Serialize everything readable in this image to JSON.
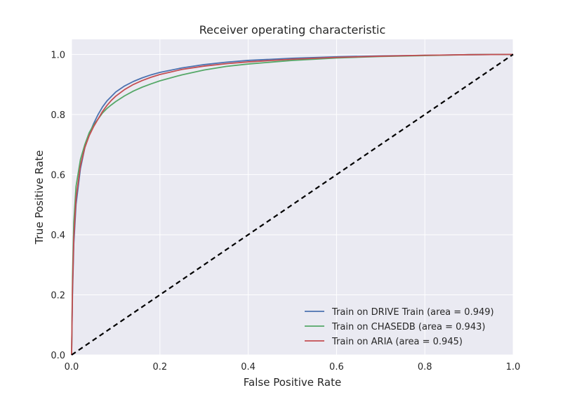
{
  "chart_data": {
    "type": "line",
    "title": "Receiver operating characteristic",
    "xlabel": "False Positive Rate",
    "ylabel": "True Positive Rate",
    "xlim": [
      0.0,
      1.0
    ],
    "ylim": [
      0.0,
      1.05
    ],
    "xticks": [
      "0.0",
      "0.2",
      "0.4",
      "0.6",
      "0.8",
      "1.0"
    ],
    "yticks": [
      "0.0",
      "0.2",
      "0.4",
      "0.6",
      "0.8",
      "1.0"
    ],
    "grid": true,
    "background": "#eaeaf2",
    "legend_position": "lower-right",
    "series": [
      {
        "name": "Train on DRIVE Train (area = 0.949)",
        "color": "#4c72b0",
        "x": [
          0.0,
          0.002,
          0.005,
          0.01,
          0.02,
          0.03,
          0.04,
          0.05,
          0.06,
          0.07,
          0.08,
          0.09,
          0.1,
          0.12,
          0.14,
          0.16,
          0.18,
          0.2,
          0.25,
          0.3,
          0.35,
          0.4,
          0.5,
          0.6,
          0.7,
          0.8,
          0.9,
          1.0
        ],
        "y": [
          0.0,
          0.2,
          0.37,
          0.5,
          0.62,
          0.69,
          0.735,
          0.77,
          0.8,
          0.825,
          0.845,
          0.86,
          0.875,
          0.895,
          0.91,
          0.922,
          0.932,
          0.94,
          0.955,
          0.966,
          0.974,
          0.98,
          0.987,
          0.992,
          0.995,
          0.997,
          0.999,
          1.0
        ]
      },
      {
        "name": "Train on CHASEDB (area = 0.943)",
        "color": "#55a868",
        "x": [
          0.0,
          0.002,
          0.005,
          0.01,
          0.02,
          0.03,
          0.04,
          0.05,
          0.06,
          0.07,
          0.08,
          0.09,
          0.1,
          0.12,
          0.14,
          0.16,
          0.18,
          0.2,
          0.25,
          0.3,
          0.35,
          0.4,
          0.5,
          0.6,
          0.7,
          0.8,
          0.9,
          1.0
        ],
        "y": [
          0.0,
          0.26,
          0.44,
          0.56,
          0.65,
          0.7,
          0.74,
          0.765,
          0.785,
          0.805,
          0.82,
          0.832,
          0.843,
          0.862,
          0.878,
          0.891,
          0.902,
          0.912,
          0.932,
          0.948,
          0.96,
          0.968,
          0.98,
          0.988,
          0.993,
          0.996,
          0.999,
          1.0
        ]
      },
      {
        "name": "Train on ARIA (area = 0.945)",
        "color": "#c44e52",
        "x": [
          0.0,
          0.002,
          0.005,
          0.01,
          0.02,
          0.03,
          0.04,
          0.05,
          0.06,
          0.07,
          0.08,
          0.09,
          0.1,
          0.12,
          0.14,
          0.16,
          0.18,
          0.2,
          0.25,
          0.3,
          0.35,
          0.4,
          0.5,
          0.6,
          0.7,
          0.8,
          0.9,
          1.0
        ],
        "y": [
          0.0,
          0.22,
          0.39,
          0.52,
          0.63,
          0.69,
          0.73,
          0.76,
          0.785,
          0.81,
          0.83,
          0.847,
          0.861,
          0.883,
          0.9,
          0.913,
          0.924,
          0.933,
          0.95,
          0.961,
          0.969,
          0.975,
          0.984,
          0.99,
          0.994,
          0.997,
          0.999,
          1.0
        ]
      },
      {
        "name": "",
        "color": "#000000",
        "dashed": true,
        "x": [
          0.0,
          1.0
        ],
        "y": [
          0.0,
          1.0
        ]
      }
    ]
  }
}
